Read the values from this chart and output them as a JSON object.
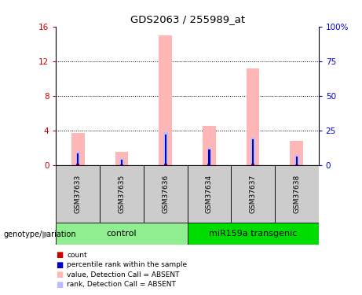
{
  "title": "GDS2063 / 255989_at",
  "samples": [
    "GSM37633",
    "GSM37635",
    "GSM37636",
    "GSM37634",
    "GSM37637",
    "GSM37638"
  ],
  "groups": [
    {
      "name": "control",
      "indices": [
        0,
        1,
        2
      ],
      "color": "#90EE90"
    },
    {
      "name": "miR159a transgenic",
      "indices": [
        3,
        4,
        5
      ],
      "color": "#00DD00"
    }
  ],
  "bar_values": [
    3.7,
    1.5,
    15.0,
    4.5,
    11.2,
    2.8
  ],
  "rank_values": [
    1.5,
    0.7,
    3.8,
    2.0,
    3.2,
    1.2
  ],
  "count_values": [
    0.18,
    0.12,
    0.2,
    0.15,
    0.15,
    0.12
  ],
  "percentile_values": [
    1.4,
    0.6,
    3.5,
    1.8,
    3.0,
    1.0
  ],
  "ylim_left": [
    0,
    16
  ],
  "ylim_right": [
    0,
    100
  ],
  "yticks_left": [
    0,
    4,
    8,
    12,
    16
  ],
  "yticks_right": [
    0,
    25,
    50,
    75,
    100
  ],
  "yticklabels_left": [
    "0",
    "4",
    "8",
    "12",
    "16"
  ],
  "yticklabels_right": [
    "0",
    "25",
    "50",
    "75",
    "100%"
  ],
  "color_bar": "#FFB6B6",
  "color_rank_bar": "#BBBBFF",
  "color_count": "#CC0000",
  "color_percentile": "#0000CC",
  "color_left_axis": "#CC0000",
  "color_right_axis": "#0000CC",
  "label_count": "count",
  "label_percentile": "percentile rank within the sample",
  "label_bar": "value, Detection Call = ABSENT",
  "label_rank": "rank, Detection Call = ABSENT",
  "group_label": "genotype/variation",
  "sample_bg_color": "#CCCCCC",
  "grid_yticks": [
    4,
    8,
    12
  ]
}
